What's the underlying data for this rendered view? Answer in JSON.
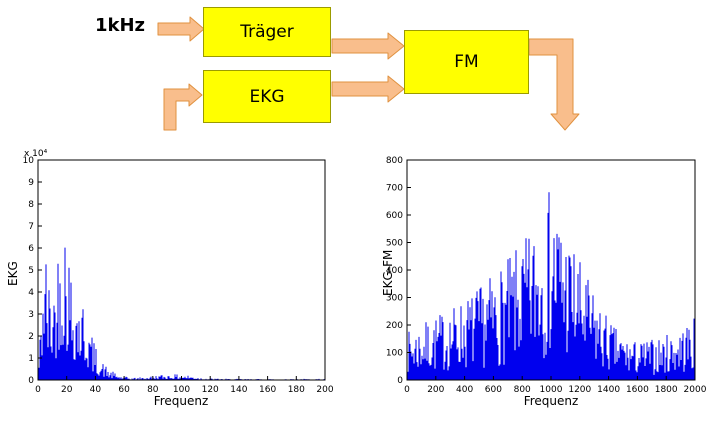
{
  "figure": {
    "background": "#ffffff"
  },
  "diagram": {
    "input_label": "1kHz",
    "blocks": [
      {
        "label": "Träger"
      },
      {
        "label": "EKG"
      },
      {
        "label": "FM"
      }
    ],
    "colors": {
      "block_fill": "#ffff00",
      "block_border": "#9b9b00",
      "arrow_fill": "#f9be8c",
      "arrow_stroke": "#e0913f"
    }
  },
  "chart_data": [
    {
      "type": "line",
      "title": "",
      "xlabel": "Frequenz",
      "ylabel": "EKG",
      "y_scale_note": "x 10⁴",
      "xlim": [
        0,
        200
      ],
      "ylim": [
        0,
        10
      ],
      "xticks": [
        0,
        20,
        40,
        60,
        80,
        100,
        120,
        140,
        160,
        180,
        200
      ],
      "yticks": [
        0,
        1,
        2,
        3,
        4,
        5,
        6,
        7,
        8,
        9,
        10
      ],
      "grid": false,
      "legend": "none",
      "line_color": "#0000ee",
      "seed": 42,
      "noise": {
        "base": 0.18,
        "pow": 1.5
      },
      "envelope": [
        [
          0,
          0.4
        ],
        [
          2,
          3.0
        ],
        [
          4,
          7.2
        ],
        [
          6,
          6.0
        ],
        [
          8,
          4.5
        ],
        [
          10,
          5.0
        ],
        [
          13,
          5.6
        ],
        [
          16,
          8.6
        ],
        [
          19,
          8.0
        ],
        [
          22,
          6.0
        ],
        [
          26,
          4.8
        ],
        [
          30,
          4.2
        ],
        [
          34,
          3.2
        ],
        [
          38,
          2.0
        ],
        [
          43,
          1.0
        ],
        [
          50,
          0.45
        ],
        [
          58,
          0.18
        ],
        [
          66,
          0.1
        ],
        [
          75,
          0.14
        ],
        [
          85,
          0.24
        ],
        [
          95,
          0.26
        ],
        [
          105,
          0.22
        ],
        [
          112,
          0.13
        ],
        [
          120,
          0.07
        ],
        [
          135,
          0.05
        ],
        [
          160,
          0.05
        ],
        [
          200,
          0.05
        ]
      ]
    },
    {
      "type": "line",
      "title": "",
      "xlabel": "Frequenz",
      "ylabel": "EKG-FM",
      "y_scale_note": "",
      "xlim": [
        0,
        2000
      ],
      "ylim": [
        0,
        800
      ],
      "xticks": [
        0,
        200,
        400,
        600,
        800,
        1000,
        1200,
        1400,
        1600,
        1800,
        2000
      ],
      "yticks": [
        0,
        100,
        200,
        300,
        400,
        500,
        600,
        700,
        800
      ],
      "grid": false,
      "legend": "none",
      "line_color": "#0000ee",
      "seed": 7,
      "noise": {
        "base": 0.12,
        "pow": 1.05
      },
      "envelope": [
        [
          0,
          175
        ],
        [
          100,
          205
        ],
        [
          200,
          235
        ],
        [
          300,
          265
        ],
        [
          400,
          300
        ],
        [
          500,
          340
        ],
        [
          600,
          390
        ],
        [
          700,
          440
        ],
        [
          800,
          500
        ],
        [
          880,
          560
        ],
        [
          940,
          640
        ],
        [
          1000,
          710
        ],
        [
          1040,
          660
        ],
        [
          1090,
          580
        ],
        [
          1140,
          520
        ],
        [
          1200,
          440
        ],
        [
          1280,
          340
        ],
        [
          1360,
          260
        ],
        [
          1440,
          195
        ],
        [
          1520,
          155
        ],
        [
          1600,
          140
        ],
        [
          1700,
          150
        ],
        [
          1800,
          165
        ],
        [
          1900,
          195
        ],
        [
          2000,
          228
        ]
      ]
    }
  ]
}
